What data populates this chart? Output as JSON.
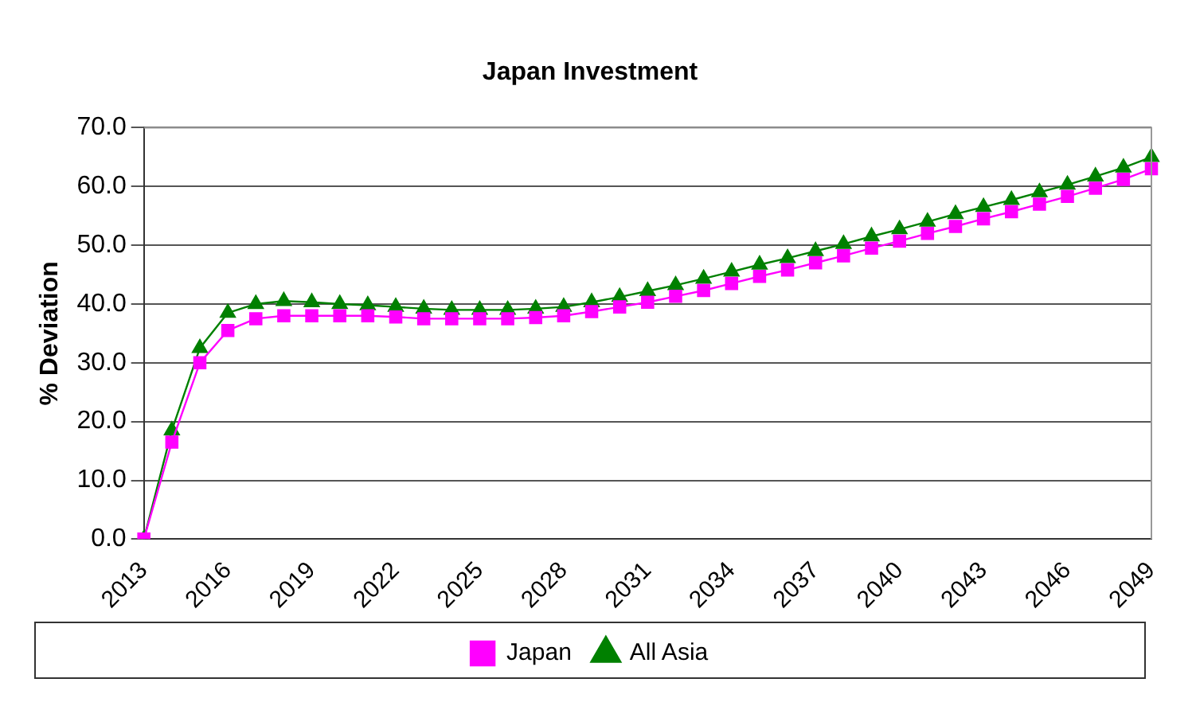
{
  "chart_data": {
    "type": "line",
    "title": "Japan Investment",
    "ylabel": "% Deviation",
    "categories": [
      "2013",
      null,
      null,
      "2016",
      null,
      null,
      "2019",
      null,
      null,
      "2022",
      null,
      null,
      "2025",
      null,
      null,
      "2028",
      null,
      null,
      "2031",
      null,
      null,
      "2034",
      null,
      null,
      "2037",
      null,
      null,
      "2040",
      null,
      null,
      "2043",
      null,
      null,
      "2046",
      null,
      null,
      "2049"
    ],
    "series": [
      {
        "name": "Japan",
        "color": "#ff00ff",
        "marker": "square",
        "values": [
          0,
          16.5,
          30,
          35.5,
          37.5,
          38,
          38,
          38,
          38,
          37.8,
          37.5,
          37.5,
          37.5,
          37.5,
          37.7,
          38,
          38.7,
          39.5,
          40.3,
          41.3,
          42.3,
          43.5,
          44.7,
          45.8,
          47,
          48.2,
          49.5,
          50.7,
          52,
          53.2,
          54.5,
          55.7,
          57,
          58.3,
          59.7,
          61.2,
          63
        ]
      },
      {
        "name": "All Asia",
        "color": "#008000",
        "marker": "triangle",
        "values": [
          0,
          18.5,
          32.5,
          38.5,
          40,
          40.5,
          40.3,
          40,
          39.8,
          39.5,
          39.2,
          39,
          39,
          39,
          39.2,
          39.5,
          40.3,
          41.2,
          42.2,
          43.2,
          44.3,
          45.5,
          46.7,
          47.8,
          49,
          50.2,
          51.5,
          52.7,
          54,
          55.3,
          56.5,
          57.7,
          59,
          60.3,
          61.7,
          63.2,
          65
        ]
      }
    ],
    "ylim": [
      0,
      70
    ],
    "yticks": [
      {
        "value": 0,
        "label": "0.0"
      },
      {
        "value": 10,
        "label": "10.0"
      },
      {
        "value": 20,
        "label": "20.0"
      },
      {
        "value": 30,
        "label": "30.0"
      },
      {
        "value": 40,
        "label": "40.0"
      },
      {
        "value": 50,
        "label": "50.0"
      },
      {
        "value": 60,
        "label": "60.0"
      },
      {
        "value": 70,
        "label": "70.0"
      }
    ],
    "grid": "y",
    "legend": "bottom"
  }
}
